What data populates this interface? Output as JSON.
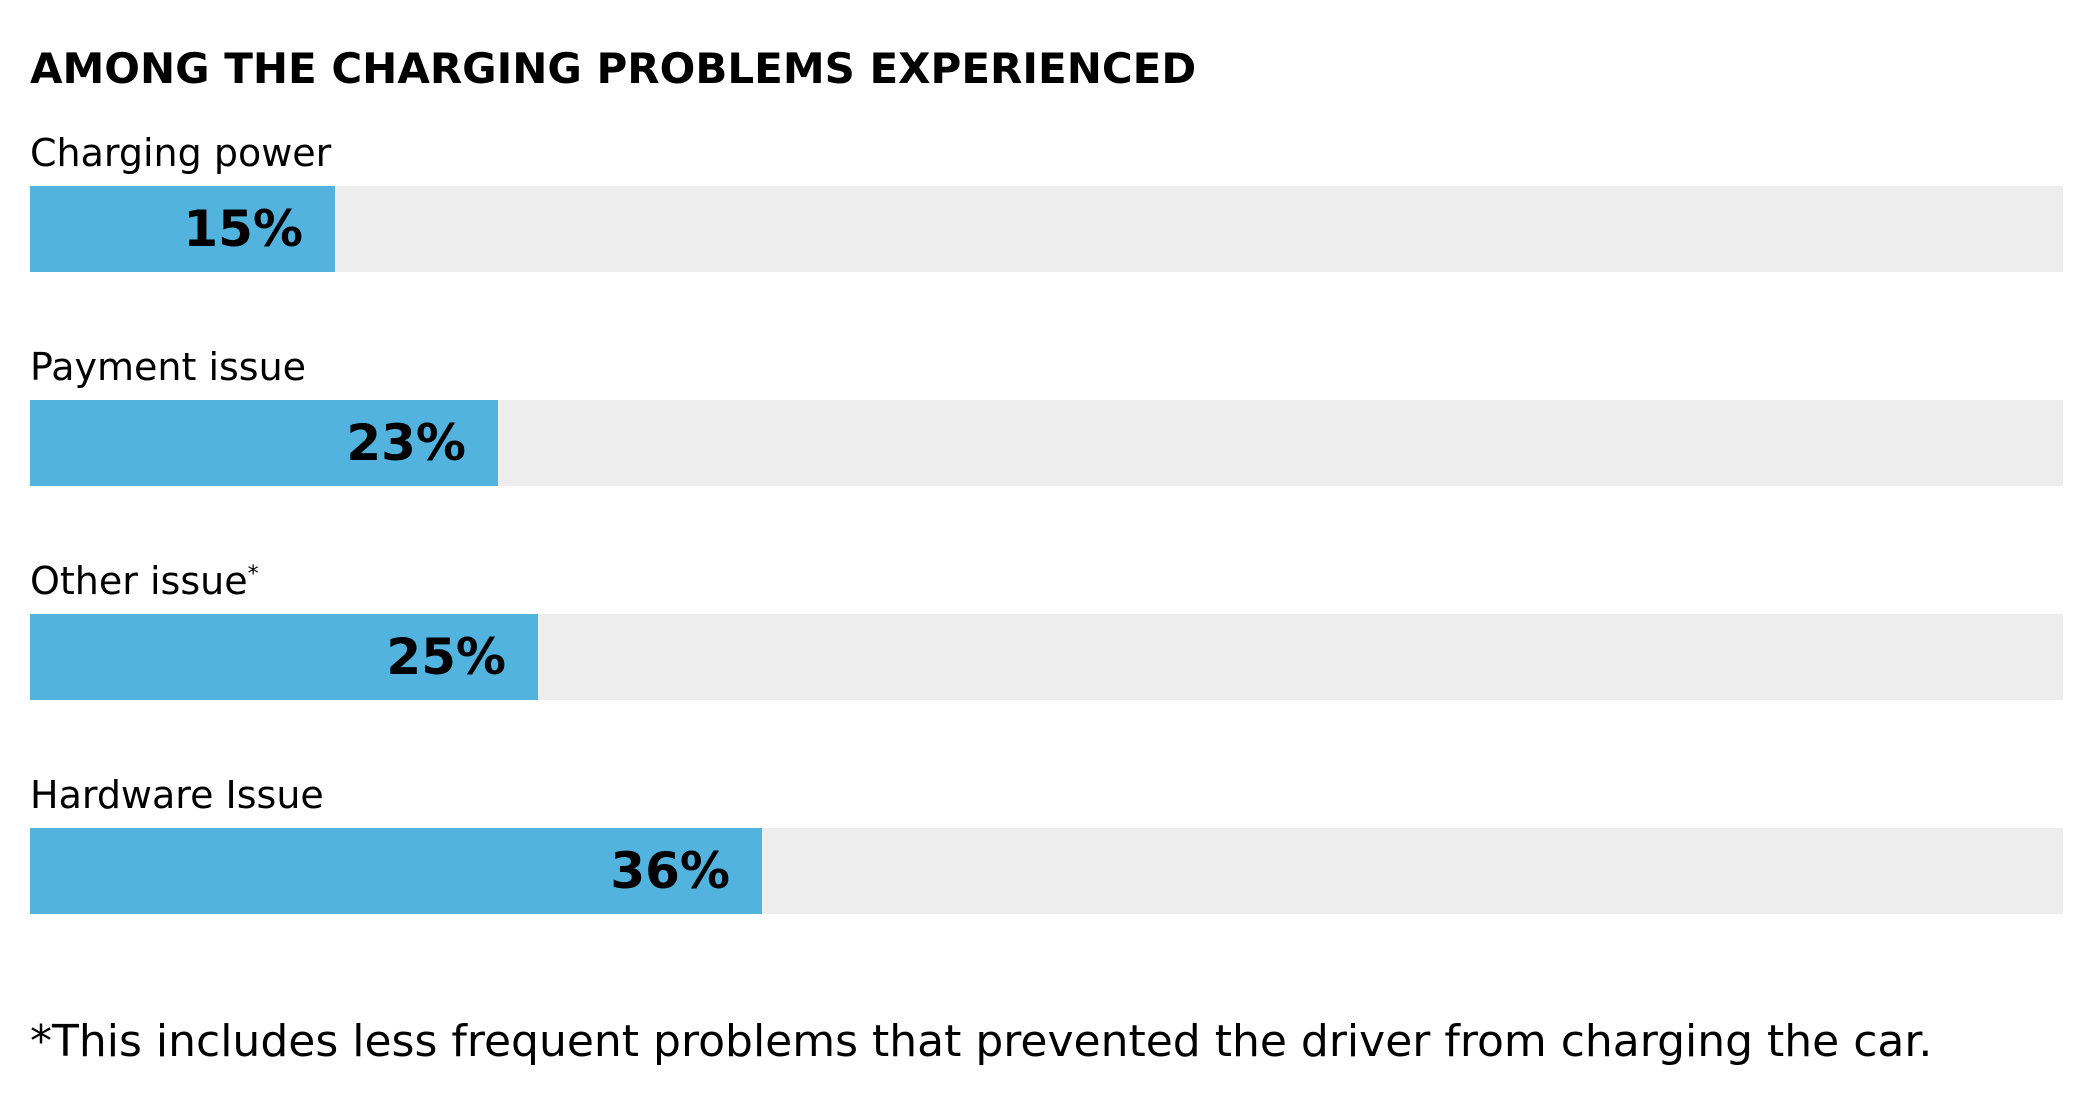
{
  "chart_data": {
    "type": "bar",
    "orientation": "horizontal",
    "title": "AMONG THE CHARGING PROBLEMS EXPERIENCED",
    "categories": [
      "Charging power",
      "Payment issue",
      "Other issue",
      "Hardware Issue"
    ],
    "category_markers": [
      "",
      "",
      "*",
      ""
    ],
    "values": [
      15,
      23,
      25,
      36
    ],
    "value_labels": [
      "15%",
      "23%",
      "25%",
      "36%"
    ],
    "xlim": [
      0,
      100
    ],
    "grid": false,
    "legend": "none",
    "footnote": "*This includes less frequent problems that prevented the driver from charging the car.",
    "colors": {
      "bar": "#52b4de",
      "track": "#ededed",
      "text": "#000000"
    }
  }
}
